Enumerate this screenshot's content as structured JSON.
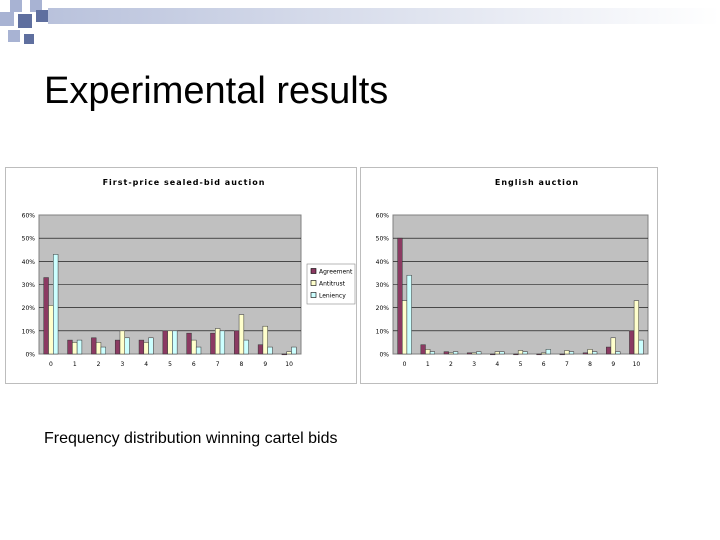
{
  "slide": {
    "title": "Experimental results",
    "caption": "Frequency distribution winning cartel bids"
  },
  "colors": {
    "plot_bg": "#c0c0c0",
    "agreement": "#8b3a62",
    "antitrust": "#ffffcc",
    "leniency": "#ccffff",
    "bar_outline": "#333333",
    "deco_dark": "#5f6f9f",
    "deco_light": "#a8b3d3"
  },
  "chart_data": [
    {
      "type": "bar",
      "title": "First-price sealed-bid auction",
      "categories": [
        "0",
        "1",
        "2",
        "3",
        "4",
        "5",
        "6",
        "7",
        "8",
        "9",
        "10"
      ],
      "ylim": [
        0,
        60
      ],
      "yticks": [
        "0%",
        "10%",
        "20%",
        "30%",
        "40%",
        "50%",
        "60%"
      ],
      "grid": true,
      "legend_position": "right",
      "series": [
        {
          "name": "Agreement",
          "values": [
            33,
            6,
            7,
            6,
            6,
            10,
            9,
            9,
            10,
            4,
            0
          ]
        },
        {
          "name": "Antitrust",
          "values": [
            21,
            5,
            5,
            10,
            5,
            10,
            6,
            11,
            17,
            12,
            1
          ]
        },
        {
          "name": "Leniency",
          "values": [
            43,
            6,
            3,
            7,
            7,
            10,
            3,
            10,
            6,
            3,
            3
          ]
        }
      ]
    },
    {
      "type": "bar",
      "title": "English auction",
      "categories": [
        "0",
        "1",
        "2",
        "3",
        "4",
        "5",
        "6",
        "7",
        "8",
        "9",
        "10"
      ],
      "ylim": [
        0,
        60
      ],
      "yticks": [
        "0%",
        "10%",
        "20%",
        "30%",
        "40%",
        "50%",
        "60%"
      ],
      "grid": true,
      "legend_position": "right",
      "series": [
        {
          "name": "Agreement",
          "values": [
            50,
            4,
            1,
            0.5,
            0,
            0,
            0,
            0,
            0.5,
            3,
            10
          ]
        },
        {
          "name": "Antitrust",
          "values": [
            23,
            2,
            0.5,
            0.5,
            1,
            1.5,
            0.5,
            1.5,
            2,
            7,
            23
          ]
        },
        {
          "name": "Leniency",
          "values": [
            34,
            1,
            1,
            1,
            1,
            1,
            2,
            1,
            1,
            1,
            6
          ]
        }
      ]
    }
  ]
}
